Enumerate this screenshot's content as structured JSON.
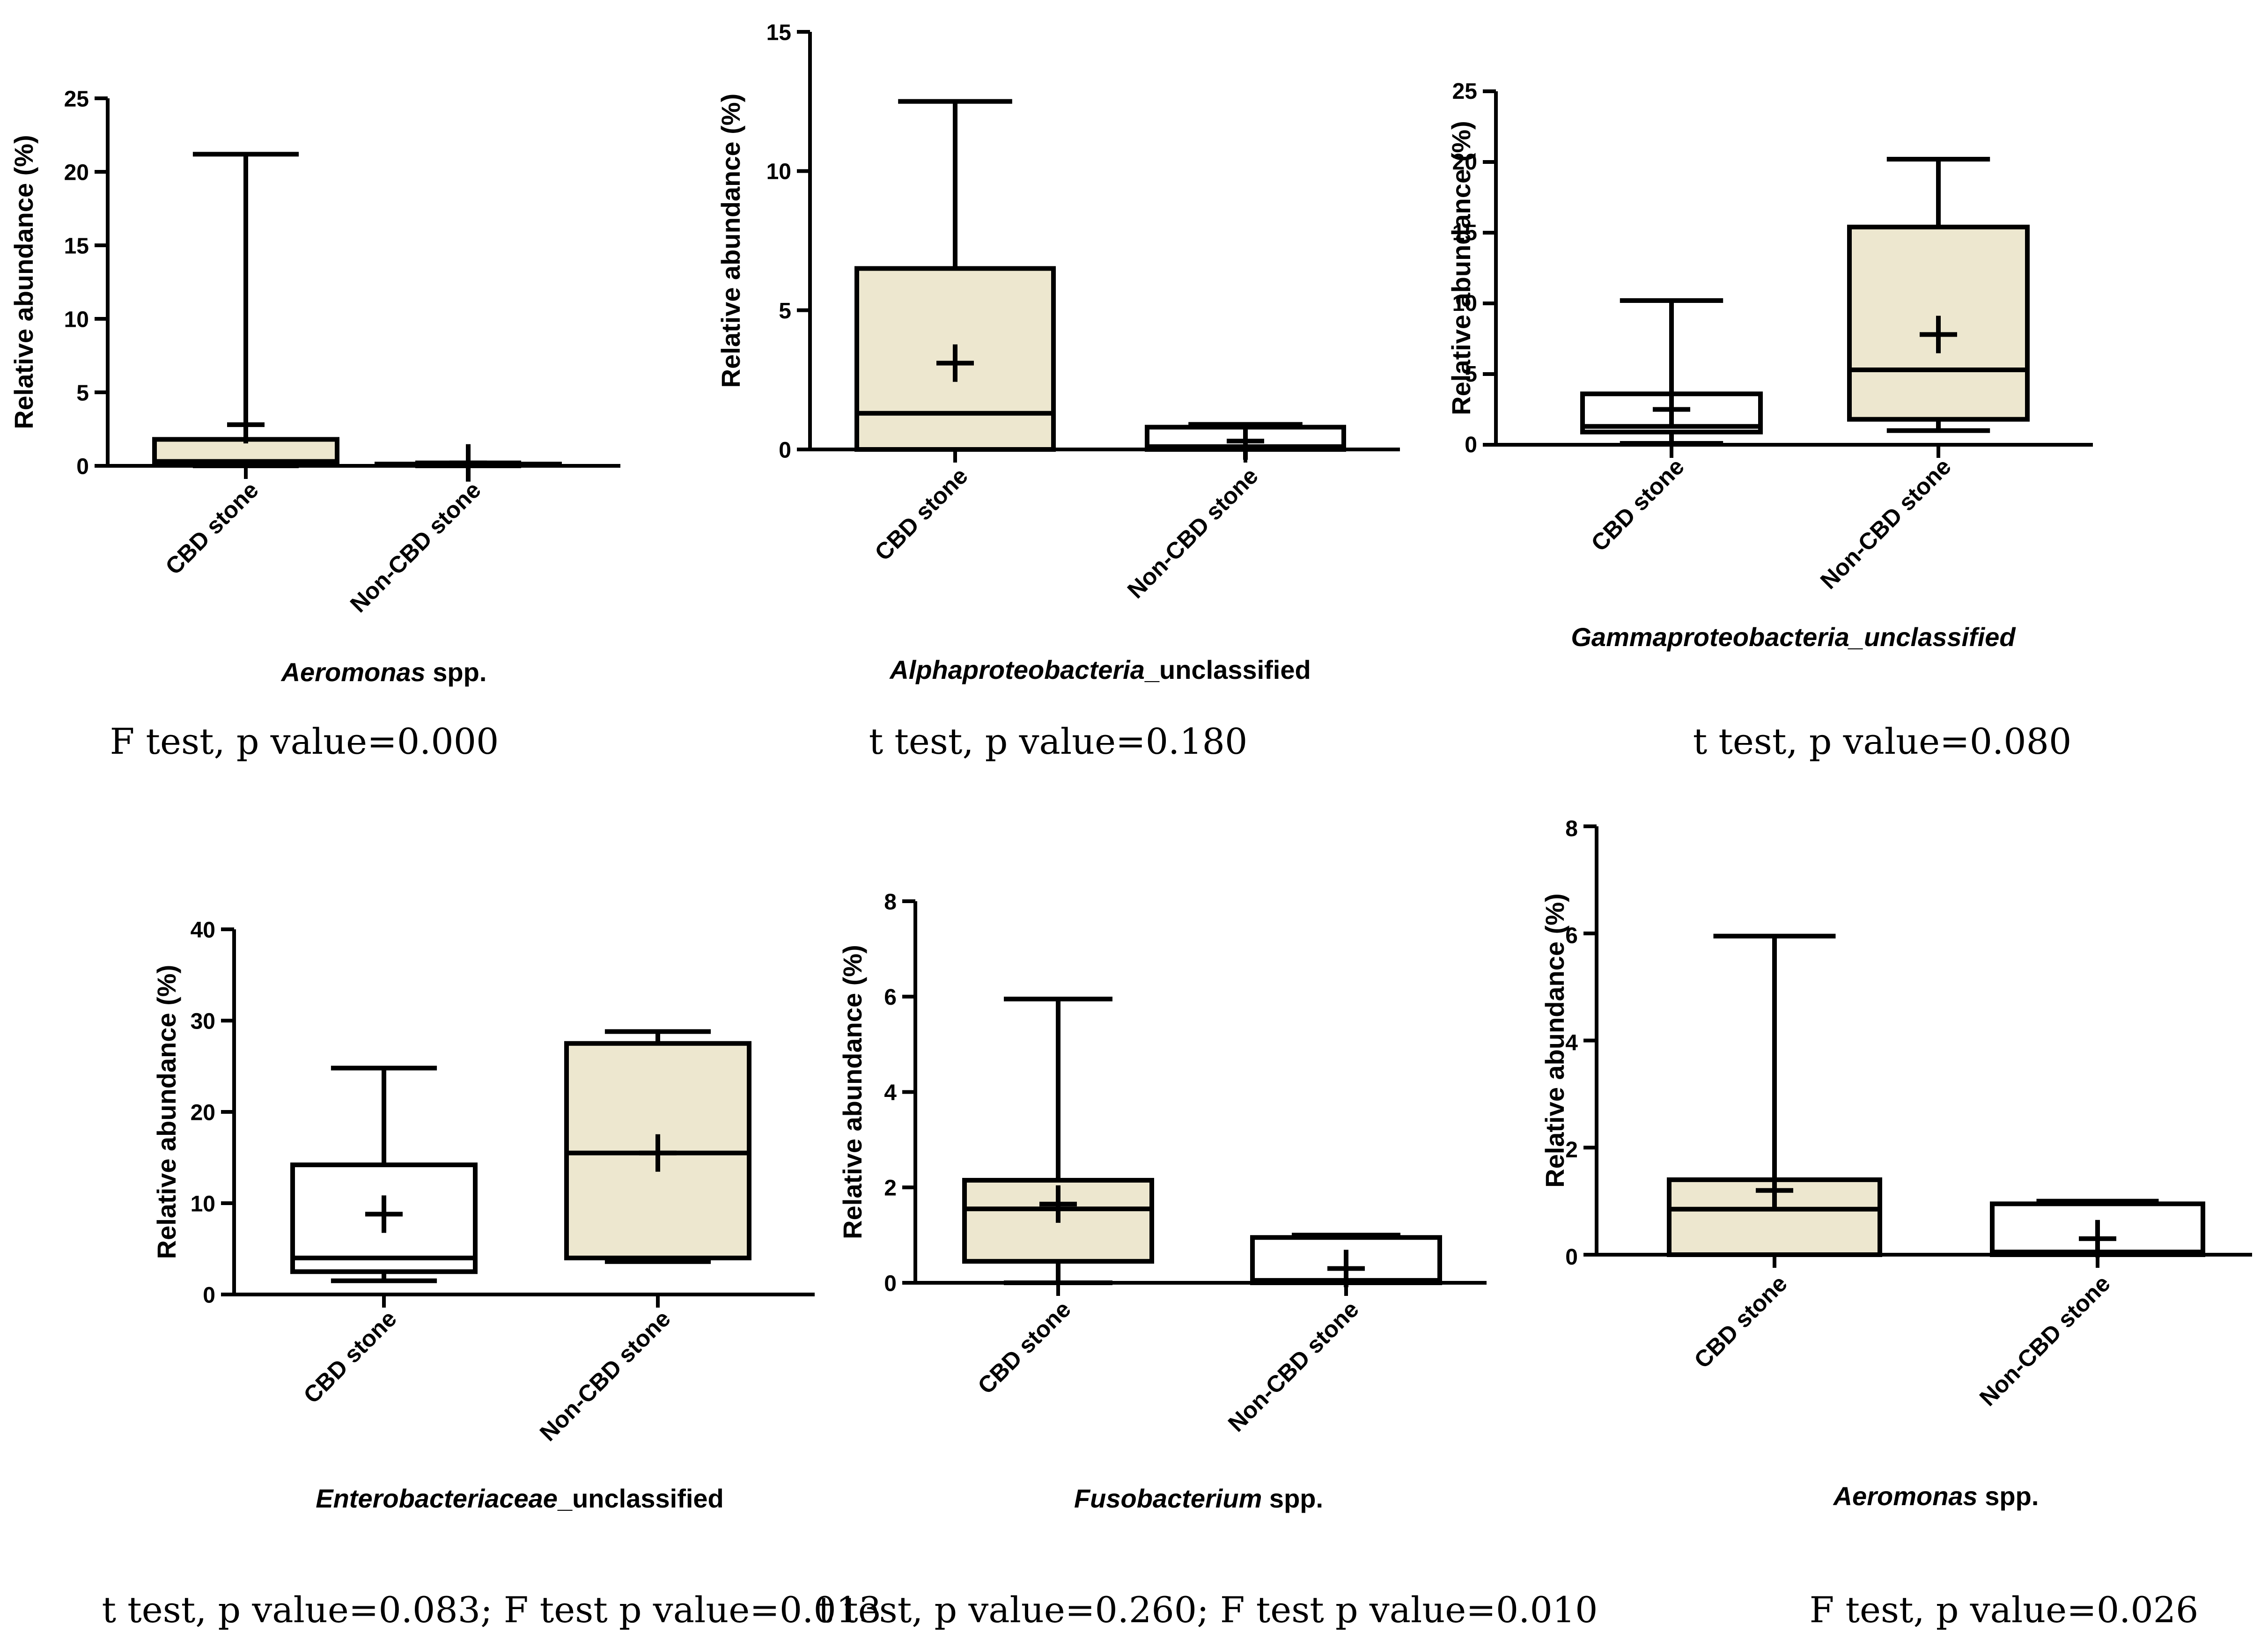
{
  "colors": {
    "filled_box": "#ede7cf",
    "open_box": "#ffffff",
    "ink": "#000000"
  },
  "chart_data": [
    {
      "type": "box",
      "title_italic": "Aeromonas",
      "title_rest": " spp.",
      "ylabel": "Relative abundance (%)",
      "ylim": [
        0,
        25
      ],
      "yticks": [
        0,
        5,
        10,
        15,
        20,
        25
      ],
      "categories": [
        "CBD stone",
        "Non-CBD stone"
      ],
      "boxes": [
        {
          "min": 0,
          "q1": 0.2,
          "median": 0.3,
          "q3": 1.8,
          "max": 21.2,
          "mean": 2.8,
          "filled": true
        },
        {
          "min": 0,
          "q1": 0.05,
          "median": 0.08,
          "q3": 0.12,
          "max": 0.2,
          "mean": 0.2,
          "filled": false
        }
      ],
      "stat": "F test, p value=0.000"
    },
    {
      "type": "box",
      "title_italic": "Alphaproteobacteria",
      "title_rest": "_unclassified",
      "ylabel": "Relative abundance (%)",
      "ylim": [
        0,
        15
      ],
      "yticks": [
        0,
        5,
        10,
        15
      ],
      "categories": [
        "CBD stone",
        "Non-CBD stone"
      ],
      "boxes": [
        {
          "min": 0,
          "q1": 0,
          "median": 1.3,
          "q3": 6.5,
          "max": 12.5,
          "mean": 3.1,
          "filled": true
        },
        {
          "min": 0,
          "q1": 0,
          "median": 0.1,
          "q3": 0.8,
          "max": 0.9,
          "mean": 0.3,
          "filled": false
        }
      ],
      "stat": "t test, p value=0.180"
    },
    {
      "type": "box",
      "title_italic": "Gammaproteobacteria_unclassified",
      "title_rest": "",
      "ylabel": "Relative abundance (%)",
      "ylim": [
        0,
        25
      ],
      "yticks": [
        0,
        5,
        10,
        15,
        20,
        25
      ],
      "categories": [
        "CBD stone",
        "Non-CBD stone"
      ],
      "boxes": [
        {
          "min": 0.1,
          "q1": 0.9,
          "median": 1.3,
          "q3": 3.6,
          "max": 10.2,
          "mean": 2.5,
          "filled": false
        },
        {
          "min": 1.0,
          "q1": 1.8,
          "median": 5.3,
          "q3": 15.4,
          "max": 20.2,
          "mean": 7.8,
          "filled": true
        }
      ],
      "stat": "t test, p value=0.080"
    },
    {
      "type": "box",
      "title_italic": "Enterobacteriaceae",
      "title_rest": "_unclassified",
      "ylabel": "Relative abundance (%)",
      "ylim": [
        0,
        40
      ],
      "yticks": [
        0,
        10,
        20,
        30,
        40
      ],
      "categories": [
        "CBD stone",
        "Non-CBD stone"
      ],
      "boxes": [
        {
          "min": 1.5,
          "q1": 2.5,
          "median": 4.0,
          "q3": 14.2,
          "max": 24.8,
          "mean": 8.8,
          "filled": false
        },
        {
          "min": 3.6,
          "q1": 4.0,
          "median": 15.5,
          "q3": 27.5,
          "max": 28.8,
          "mean": 15.5,
          "filled": true
        }
      ],
      "stat": "t test, p value=0.083; F test p value=0.013"
    },
    {
      "type": "box",
      "title_italic": "Fusobacterium",
      "title_rest": " spp.",
      "ylabel": "Relative abundance (%)",
      "ylim": [
        0,
        8
      ],
      "yticks": [
        0,
        2,
        4,
        6,
        8
      ],
      "categories": [
        "CBD stone",
        "Non-CBD stone"
      ],
      "boxes": [
        {
          "min": 0,
          "q1": 0.45,
          "median": 1.55,
          "q3": 2.15,
          "max": 5.95,
          "mean": 1.65,
          "filled": true
        },
        {
          "min": 0,
          "q1": 0,
          "median": 0.05,
          "q3": 0.95,
          "max": 1.0,
          "mean": 0.3,
          "filled": false
        }
      ],
      "stat": "t test, p value=0.260; F test p value=0.010"
    },
    {
      "type": "box",
      "title_italic": "Aeromonas",
      "title_rest": " spp.",
      "ylabel": "Relative abundance (%)",
      "ylim": [
        0,
        8
      ],
      "yticks": [
        0,
        2,
        4,
        6,
        8
      ],
      "categories": [
        "CBD stone",
        "Non-CBD stone"
      ],
      "boxes": [
        {
          "min": 0,
          "q1": 0,
          "median": 0.85,
          "q3": 1.4,
          "max": 5.95,
          "mean": 1.2,
          "filled": true
        },
        {
          "min": 0,
          "q1": 0,
          "median": 0.05,
          "q3": 0.95,
          "max": 1.0,
          "mean": 0.3,
          "filled": false
        }
      ],
      "stat": "F test, p value=0.026"
    }
  ]
}
